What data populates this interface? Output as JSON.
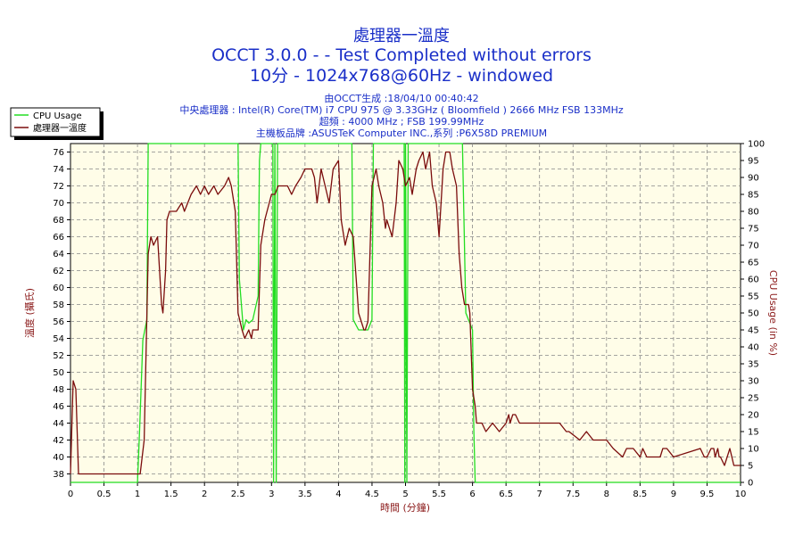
{
  "chart_data": {
    "type": "line",
    "title": "處理器一溫度",
    "subtitle_lines": [
      "OCCT 3.0.0 -  - Test Completed without errors",
      "10分 - 1024x768@60Hz - windowed"
    ],
    "info_lines": [
      "由OCCT生成 :18/04/10 00:40:42",
      "中央處理器 : Intel(R) Core(TM) i7 CPU 975 @ 3.33GHz ( Bloomfield ) 2666 MHz FSB 133MHz",
      "超頻 : 4000 MHz ; FSB 199.99MHz",
      "主機板品牌 :ASUSTeK Computer INC.,系列 :P6X58D PREMIUM"
    ],
    "xlabel": "時間 (分鐘)",
    "ylabel": "溫度 (攝氏)",
    "y2label": "CPU Usage (in %)",
    "xlim": [
      0,
      10
    ],
    "ylim": [
      37,
      77
    ],
    "y2lim": [
      0,
      100
    ],
    "x_ticks": [
      "0",
      "0.5",
      "1",
      "1.5",
      "2",
      "2.5",
      "3",
      "3.5",
      "4",
      "4.5",
      "5",
      "5.5",
      "6",
      "6.5",
      "7",
      "7.5",
      "8",
      "8.5",
      "9",
      "9.5",
      "10"
    ],
    "y_ticks": [
      "38",
      "40",
      "42",
      "44",
      "46",
      "48",
      "50",
      "52",
      "54",
      "56",
      "58",
      "60",
      "62",
      "64",
      "66",
      "68",
      "70",
      "72",
      "74",
      "76"
    ],
    "y2_ticks": [
      "0",
      "5",
      "10",
      "15",
      "20",
      "25",
      "30",
      "35",
      "40",
      "45",
      "50",
      "55",
      "60",
      "65",
      "70",
      "75",
      "80",
      "85",
      "90",
      "95",
      "100"
    ],
    "grid": true,
    "legend_placement": "top-left",
    "series": [
      {
        "name": "CPU Usage",
        "axis": "right",
        "color": "#22dd22",
        "x": [
          0,
          1.0,
          1.03,
          1.08,
          1.14,
          1.16,
          2.5,
          2.52,
          2.58,
          2.62,
          2.66,
          2.72,
          2.8,
          2.82,
          2.84,
          3.02,
          3.03,
          3.05,
          3.07,
          3.09,
          3.1,
          4.2,
          4.22,
          4.3,
          4.44,
          4.5,
          4.52,
          4.98,
          4.99,
          5.0,
          5.02,
          5.04,
          5.05,
          5.85,
          5.9,
          5.94,
          6.0,
          6.02,
          6.04,
          10
        ],
        "y": [
          0,
          0,
          15,
          42,
          48,
          100,
          100,
          60,
          45,
          48,
          47,
          48,
          55,
          95,
          100,
          100,
          0,
          100,
          0,
          100,
          100,
          100,
          48,
          45,
          45,
          48,
          100,
          100,
          0,
          100,
          0,
          100,
          100,
          100,
          50,
          48,
          45,
          15,
          0,
          0
        ]
      },
      {
        "name": "處理器一溫度",
        "axis": "left",
        "color": "#7a0c0c",
        "x": [
          0,
          0.04,
          0.08,
          0.1,
          0.12,
          0.16,
          1.0,
          1.04,
          1.1,
          1.16,
          1.2,
          1.24,
          1.3,
          1.36,
          1.38,
          1.42,
          1.44,
          1.48,
          1.58,
          1.66,
          1.7,
          1.8,
          1.88,
          1.94,
          2.0,
          2.06,
          2.14,
          2.2,
          2.3,
          2.36,
          2.4,
          2.46,
          2.5,
          2.56,
          2.6,
          2.66,
          2.7,
          2.72,
          2.8,
          2.84,
          2.9,
          3.0,
          3.05,
          3.1,
          3.24,
          3.3,
          3.36,
          3.44,
          3.5,
          3.6,
          3.64,
          3.68,
          3.74,
          3.8,
          3.86,
          3.92,
          4.0,
          4.04,
          4.1,
          4.16,
          4.22,
          4.3,
          4.38,
          4.4,
          4.44,
          4.5,
          4.56,
          4.6,
          4.66,
          4.7,
          4.72,
          4.8,
          4.86,
          4.9,
          4.96,
          5.0,
          5.06,
          5.1,
          5.16,
          5.2,
          5.26,
          5.3,
          5.36,
          5.4,
          5.46,
          5.5,
          5.56,
          5.6,
          5.66,
          5.7,
          5.76,
          5.8,
          5.84,
          5.88,
          5.94,
          5.96,
          6.0,
          6.04,
          6.06,
          6.08,
          6.14,
          6.2,
          6.3,
          6.4,
          6.5,
          6.54,
          6.56,
          6.6,
          6.64,
          6.7,
          7.0,
          7.3,
          7.4,
          7.44,
          7.6,
          7.7,
          7.8,
          7.84,
          7.86,
          8.0,
          8.1,
          8.24,
          8.3,
          8.4,
          8.5,
          8.54,
          8.6,
          8.8,
          8.84,
          8.9,
          9.0,
          9.4,
          9.46,
          9.5,
          9.56,
          9.6,
          9.62,
          9.66,
          9.68,
          9.7,
          9.76,
          9.8,
          9.84,
          9.9,
          10.0
        ],
        "y": [
          38,
          49,
          48,
          43,
          38,
          38,
          38,
          38,
          42,
          64,
          66,
          65,
          66,
          58,
          57,
          62,
          68,
          69,
          69,
          70,
          69,
          71,
          72,
          71,
          72,
          71,
          72,
          71,
          72,
          73,
          72,
          69,
          57,
          55,
          54,
          55,
          54,
          55,
          55,
          65,
          68,
          71,
          71,
          72,
          72,
          71,
          72,
          73,
          74,
          74,
          73,
          70,
          74,
          72,
          70,
          74,
          75,
          68,
          65,
          67,
          66,
          57,
          55,
          55,
          56,
          72,
          74,
          72,
          70,
          67,
          68,
          66,
          70,
          75,
          74,
          72,
          73,
          71,
          74,
          75,
          76,
          74,
          76,
          72,
          70,
          66,
          74,
          76,
          76,
          74,
          72,
          64,
          60,
          58,
          58,
          57,
          48,
          46,
          44,
          44,
          44,
          43,
          44,
          43,
          44,
          45,
          44,
          45,
          45,
          44,
          44,
          44,
          43,
          43,
          42,
          43,
          42,
          42,
          42,
          42,
          41,
          40,
          41,
          41,
          40,
          41,
          40,
          40,
          41,
          41,
          40,
          41,
          40,
          40,
          41,
          41,
          40,
          41,
          40,
          40,
          39,
          40,
          41,
          39,
          39
        ]
      }
    ]
  }
}
